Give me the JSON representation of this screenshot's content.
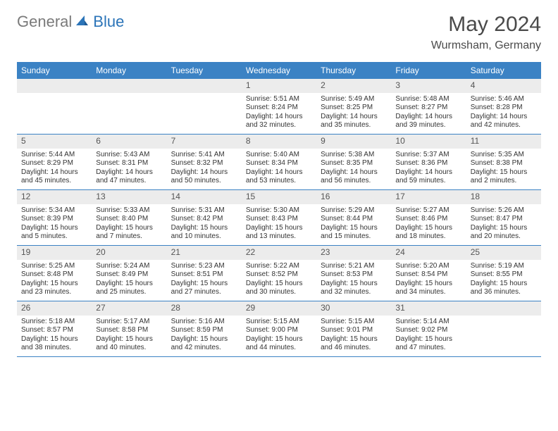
{
  "logo": {
    "part1": "General",
    "part2": "Blue"
  },
  "title": "May 2024",
  "location": "Wurmsham, Germany",
  "colors": {
    "header_bg": "#3b82c4",
    "header_text": "#ffffff",
    "daynum_bg": "#ececec",
    "row_border": "#3b82c4",
    "title_color": "#4a4a4a",
    "body_text": "#333333"
  },
  "day_headers": [
    "Sunday",
    "Monday",
    "Tuesday",
    "Wednesday",
    "Thursday",
    "Friday",
    "Saturday"
  ],
  "weeks": [
    [
      {
        "n": "",
        "empty": true
      },
      {
        "n": "",
        "empty": true
      },
      {
        "n": "",
        "empty": true
      },
      {
        "n": "1",
        "sr": "Sunrise: 5:51 AM",
        "ss": "Sunset: 8:24 PM",
        "dl1": "Daylight: 14 hours",
        "dl2": "and 32 minutes."
      },
      {
        "n": "2",
        "sr": "Sunrise: 5:49 AM",
        "ss": "Sunset: 8:25 PM",
        "dl1": "Daylight: 14 hours",
        "dl2": "and 35 minutes."
      },
      {
        "n": "3",
        "sr": "Sunrise: 5:48 AM",
        "ss": "Sunset: 8:27 PM",
        "dl1": "Daylight: 14 hours",
        "dl2": "and 39 minutes."
      },
      {
        "n": "4",
        "sr": "Sunrise: 5:46 AM",
        "ss": "Sunset: 8:28 PM",
        "dl1": "Daylight: 14 hours",
        "dl2": "and 42 minutes."
      }
    ],
    [
      {
        "n": "5",
        "sr": "Sunrise: 5:44 AM",
        "ss": "Sunset: 8:29 PM",
        "dl1": "Daylight: 14 hours",
        "dl2": "and 45 minutes."
      },
      {
        "n": "6",
        "sr": "Sunrise: 5:43 AM",
        "ss": "Sunset: 8:31 PM",
        "dl1": "Daylight: 14 hours",
        "dl2": "and 47 minutes."
      },
      {
        "n": "7",
        "sr": "Sunrise: 5:41 AM",
        "ss": "Sunset: 8:32 PM",
        "dl1": "Daylight: 14 hours",
        "dl2": "and 50 minutes."
      },
      {
        "n": "8",
        "sr": "Sunrise: 5:40 AM",
        "ss": "Sunset: 8:34 PM",
        "dl1": "Daylight: 14 hours",
        "dl2": "and 53 minutes."
      },
      {
        "n": "9",
        "sr": "Sunrise: 5:38 AM",
        "ss": "Sunset: 8:35 PM",
        "dl1": "Daylight: 14 hours",
        "dl2": "and 56 minutes."
      },
      {
        "n": "10",
        "sr": "Sunrise: 5:37 AM",
        "ss": "Sunset: 8:36 PM",
        "dl1": "Daylight: 14 hours",
        "dl2": "and 59 minutes."
      },
      {
        "n": "11",
        "sr": "Sunrise: 5:35 AM",
        "ss": "Sunset: 8:38 PM",
        "dl1": "Daylight: 15 hours",
        "dl2": "and 2 minutes."
      }
    ],
    [
      {
        "n": "12",
        "sr": "Sunrise: 5:34 AM",
        "ss": "Sunset: 8:39 PM",
        "dl1": "Daylight: 15 hours",
        "dl2": "and 5 minutes."
      },
      {
        "n": "13",
        "sr": "Sunrise: 5:33 AM",
        "ss": "Sunset: 8:40 PM",
        "dl1": "Daylight: 15 hours",
        "dl2": "and 7 minutes."
      },
      {
        "n": "14",
        "sr": "Sunrise: 5:31 AM",
        "ss": "Sunset: 8:42 PM",
        "dl1": "Daylight: 15 hours",
        "dl2": "and 10 minutes."
      },
      {
        "n": "15",
        "sr": "Sunrise: 5:30 AM",
        "ss": "Sunset: 8:43 PM",
        "dl1": "Daylight: 15 hours",
        "dl2": "and 13 minutes."
      },
      {
        "n": "16",
        "sr": "Sunrise: 5:29 AM",
        "ss": "Sunset: 8:44 PM",
        "dl1": "Daylight: 15 hours",
        "dl2": "and 15 minutes."
      },
      {
        "n": "17",
        "sr": "Sunrise: 5:27 AM",
        "ss": "Sunset: 8:46 PM",
        "dl1": "Daylight: 15 hours",
        "dl2": "and 18 minutes."
      },
      {
        "n": "18",
        "sr": "Sunrise: 5:26 AM",
        "ss": "Sunset: 8:47 PM",
        "dl1": "Daylight: 15 hours",
        "dl2": "and 20 minutes."
      }
    ],
    [
      {
        "n": "19",
        "sr": "Sunrise: 5:25 AM",
        "ss": "Sunset: 8:48 PM",
        "dl1": "Daylight: 15 hours",
        "dl2": "and 23 minutes."
      },
      {
        "n": "20",
        "sr": "Sunrise: 5:24 AM",
        "ss": "Sunset: 8:49 PM",
        "dl1": "Daylight: 15 hours",
        "dl2": "and 25 minutes."
      },
      {
        "n": "21",
        "sr": "Sunrise: 5:23 AM",
        "ss": "Sunset: 8:51 PM",
        "dl1": "Daylight: 15 hours",
        "dl2": "and 27 minutes."
      },
      {
        "n": "22",
        "sr": "Sunrise: 5:22 AM",
        "ss": "Sunset: 8:52 PM",
        "dl1": "Daylight: 15 hours",
        "dl2": "and 30 minutes."
      },
      {
        "n": "23",
        "sr": "Sunrise: 5:21 AM",
        "ss": "Sunset: 8:53 PM",
        "dl1": "Daylight: 15 hours",
        "dl2": "and 32 minutes."
      },
      {
        "n": "24",
        "sr": "Sunrise: 5:20 AM",
        "ss": "Sunset: 8:54 PM",
        "dl1": "Daylight: 15 hours",
        "dl2": "and 34 minutes."
      },
      {
        "n": "25",
        "sr": "Sunrise: 5:19 AM",
        "ss": "Sunset: 8:55 PM",
        "dl1": "Daylight: 15 hours",
        "dl2": "and 36 minutes."
      }
    ],
    [
      {
        "n": "26",
        "sr": "Sunrise: 5:18 AM",
        "ss": "Sunset: 8:57 PM",
        "dl1": "Daylight: 15 hours",
        "dl2": "and 38 minutes."
      },
      {
        "n": "27",
        "sr": "Sunrise: 5:17 AM",
        "ss": "Sunset: 8:58 PM",
        "dl1": "Daylight: 15 hours",
        "dl2": "and 40 minutes."
      },
      {
        "n": "28",
        "sr": "Sunrise: 5:16 AM",
        "ss": "Sunset: 8:59 PM",
        "dl1": "Daylight: 15 hours",
        "dl2": "and 42 minutes."
      },
      {
        "n": "29",
        "sr": "Sunrise: 5:15 AM",
        "ss": "Sunset: 9:00 PM",
        "dl1": "Daylight: 15 hours",
        "dl2": "and 44 minutes."
      },
      {
        "n": "30",
        "sr": "Sunrise: 5:15 AM",
        "ss": "Sunset: 9:01 PM",
        "dl1": "Daylight: 15 hours",
        "dl2": "and 46 minutes."
      },
      {
        "n": "31",
        "sr": "Sunrise: 5:14 AM",
        "ss": "Sunset: 9:02 PM",
        "dl1": "Daylight: 15 hours",
        "dl2": "and 47 minutes."
      },
      {
        "n": "",
        "empty": true
      }
    ]
  ]
}
